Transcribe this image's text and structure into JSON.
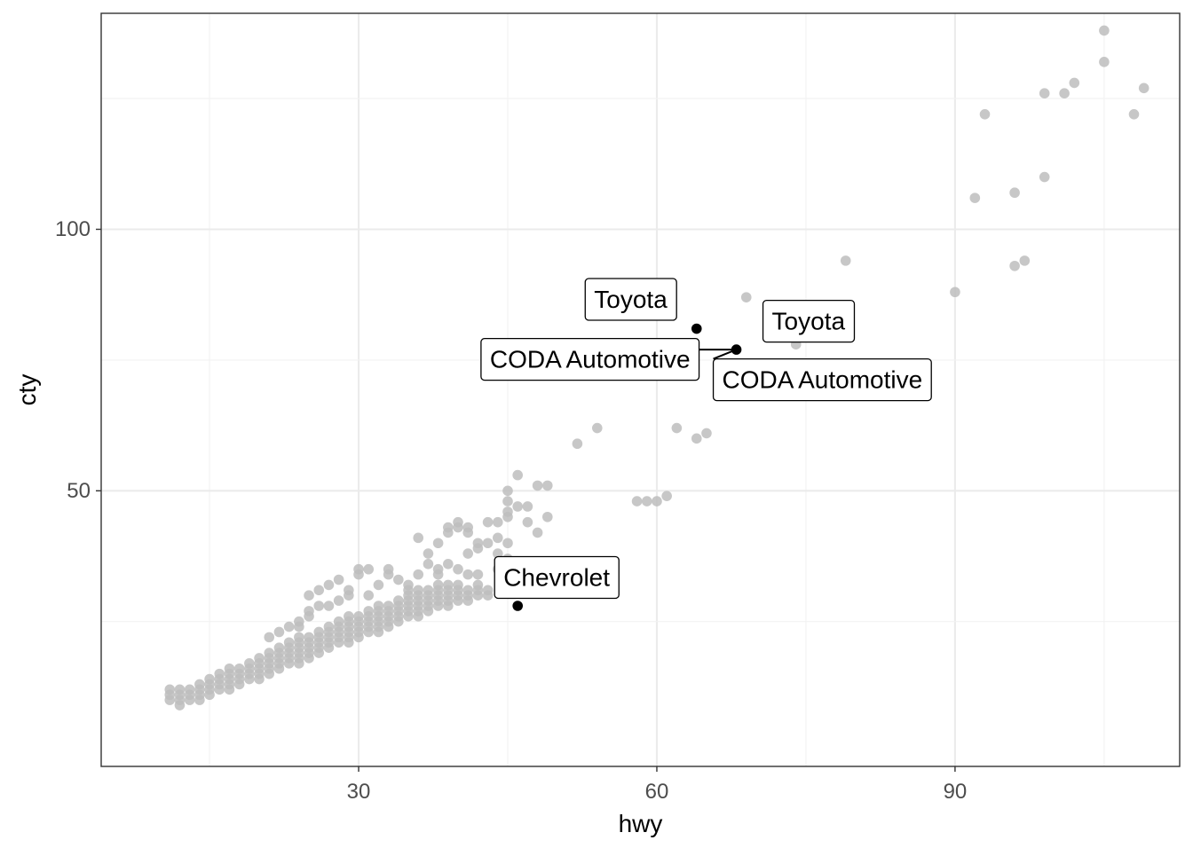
{
  "chart_data": {
    "type": "scatter",
    "xlabel": "hwy",
    "ylabel": "cty",
    "xlim": [
      4.1,
      112.6
    ],
    "ylim": [
      -2.7,
      141.3
    ],
    "x_ticks": [
      30,
      60,
      90
    ],
    "y_ticks": [
      50,
      100
    ],
    "grid": true,
    "colors": {
      "background": "#bdbdbd",
      "highlight": "#000000"
    },
    "background_points": [
      [
        11,
        10
      ],
      [
        11,
        11
      ],
      [
        11,
        12
      ],
      [
        12,
        9
      ],
      [
        12,
        10
      ],
      [
        12,
        11
      ],
      [
        12,
        12
      ],
      [
        13,
        10
      ],
      [
        13,
        11
      ],
      [
        13,
        12
      ],
      [
        14,
        10
      ],
      [
        14,
        11
      ],
      [
        14,
        12
      ],
      [
        14,
        13
      ],
      [
        15,
        11
      ],
      [
        15,
        12
      ],
      [
        15,
        13
      ],
      [
        15,
        14
      ],
      [
        16,
        12
      ],
      [
        16,
        13
      ],
      [
        16,
        14
      ],
      [
        16,
        15
      ],
      [
        17,
        12
      ],
      [
        17,
        13
      ],
      [
        17,
        14
      ],
      [
        17,
        15
      ],
      [
        17,
        16
      ],
      [
        18,
        13
      ],
      [
        18,
        14
      ],
      [
        18,
        15
      ],
      [
        18,
        16
      ],
      [
        19,
        14
      ],
      [
        19,
        15
      ],
      [
        19,
        16
      ],
      [
        19,
        17
      ],
      [
        20,
        14
      ],
      [
        20,
        15
      ],
      [
        20,
        16
      ],
      [
        20,
        17
      ],
      [
        20,
        18
      ],
      [
        21,
        15
      ],
      [
        21,
        16
      ],
      [
        21,
        17
      ],
      [
        21,
        18
      ],
      [
        21,
        19
      ],
      [
        22,
        16
      ],
      [
        22,
        17
      ],
      [
        22,
        18
      ],
      [
        22,
        19
      ],
      [
        22,
        20
      ],
      [
        23,
        17
      ],
      [
        23,
        18
      ],
      [
        23,
        19
      ],
      [
        23,
        20
      ],
      [
        23,
        21
      ],
      [
        24,
        17
      ],
      [
        24,
        18
      ],
      [
        24,
        19
      ],
      [
        24,
        20
      ],
      [
        24,
        21
      ],
      [
        24,
        22
      ],
      [
        25,
        18
      ],
      [
        25,
        19
      ],
      [
        25,
        20
      ],
      [
        25,
        21
      ],
      [
        25,
        22
      ],
      [
        26,
        19
      ],
      [
        26,
        20
      ],
      [
        26,
        21
      ],
      [
        26,
        22
      ],
      [
        26,
        23
      ],
      [
        27,
        20
      ],
      [
        27,
        21
      ],
      [
        27,
        22
      ],
      [
        27,
        23
      ],
      [
        27,
        24
      ],
      [
        28,
        21
      ],
      [
        28,
        22
      ],
      [
        28,
        23
      ],
      [
        28,
        24
      ],
      [
        28,
        25
      ],
      [
        29,
        21
      ],
      [
        29,
        22
      ],
      [
        29,
        23
      ],
      [
        29,
        24
      ],
      [
        29,
        25
      ],
      [
        29,
        26
      ],
      [
        30,
        22
      ],
      [
        30,
        23
      ],
      [
        30,
        24
      ],
      [
        30,
        25
      ],
      [
        30,
        26
      ],
      [
        31,
        23
      ],
      [
        31,
        24
      ],
      [
        31,
        25
      ],
      [
        31,
        26
      ],
      [
        31,
        27
      ],
      [
        32,
        23
      ],
      [
        32,
        24
      ],
      [
        32,
        25
      ],
      [
        32,
        26
      ],
      [
        32,
        27
      ],
      [
        32,
        28
      ],
      [
        33,
        24
      ],
      [
        33,
        25
      ],
      [
        33,
        26
      ],
      [
        33,
        27
      ],
      [
        33,
        28
      ],
      [
        34,
        25
      ],
      [
        34,
        26
      ],
      [
        34,
        27
      ],
      [
        34,
        28
      ],
      [
        34,
        29
      ],
      [
        35,
        26
      ],
      [
        35,
        27
      ],
      [
        35,
        28
      ],
      [
        35,
        29
      ],
      [
        35,
        30
      ],
      [
        36,
        26
      ],
      [
        36,
        27
      ],
      [
        36,
        28
      ],
      [
        36,
        29
      ],
      [
        36,
        30
      ],
      [
        36,
        31
      ],
      [
        37,
        27
      ],
      [
        37,
        28
      ],
      [
        37,
        29
      ],
      [
        37,
        30
      ],
      [
        37,
        31
      ],
      [
        38,
        28
      ],
      [
        38,
        29
      ],
      [
        38,
        30
      ],
      [
        38,
        31
      ],
      [
        38,
        32
      ],
      [
        39,
        28
      ],
      [
        39,
        29
      ],
      [
        39,
        30
      ],
      [
        39,
        31
      ],
      [
        39,
        32
      ],
      [
        40,
        29
      ],
      [
        40,
        30
      ],
      [
        40,
        31
      ],
      [
        40,
        32
      ],
      [
        41,
        29
      ],
      [
        41,
        30
      ],
      [
        41,
        31
      ],
      [
        42,
        30
      ],
      [
        42,
        31
      ],
      [
        42,
        32
      ],
      [
        43,
        30
      ],
      [
        43,
        31
      ],
      [
        21,
        22
      ],
      [
        22,
        23
      ],
      [
        23,
        24
      ],
      [
        24,
        24
      ],
      [
        24,
        25
      ],
      [
        25,
        26
      ],
      [
        25,
        27
      ],
      [
        25,
        30
      ],
      [
        26,
        28
      ],
      [
        26,
        31
      ],
      [
        27,
        28
      ],
      [
        27,
        32
      ],
      [
        28,
        29
      ],
      [
        28,
        33
      ],
      [
        29,
        30
      ],
      [
        29,
        31
      ],
      [
        30,
        34
      ],
      [
        30,
        35
      ],
      [
        31,
        30
      ],
      [
        31,
        35
      ],
      [
        32,
        32
      ],
      [
        33,
        34
      ],
      [
        33,
        35
      ],
      [
        34,
        33
      ],
      [
        35,
        31
      ],
      [
        35,
        32
      ],
      [
        36,
        34
      ],
      [
        36,
        41
      ],
      [
        37,
        36
      ],
      [
        37,
        38
      ],
      [
        38,
        34
      ],
      [
        38,
        35
      ],
      [
        38,
        40
      ],
      [
        39,
        36
      ],
      [
        39,
        42
      ],
      [
        39,
        43
      ],
      [
        40,
        35
      ],
      [
        40,
        43
      ],
      [
        40,
        44
      ],
      [
        41,
        34
      ],
      [
        41,
        38
      ],
      [
        41,
        42
      ],
      [
        41,
        43
      ],
      [
        42,
        34
      ],
      [
        42,
        39
      ],
      [
        42,
        40
      ],
      [
        43,
        40
      ],
      [
        43,
        44
      ],
      [
        44,
        35
      ],
      [
        44,
        38
      ],
      [
        44,
        41
      ],
      [
        44,
        44
      ],
      [
        45,
        37
      ],
      [
        45,
        40
      ],
      [
        45,
        45
      ],
      [
        45,
        46
      ],
      [
        45,
        48
      ],
      [
        45,
        50
      ],
      [
        46,
        53
      ],
      [
        46,
        47
      ],
      [
        47,
        44
      ],
      [
        47,
        47
      ],
      [
        48,
        42
      ],
      [
        48,
        51
      ],
      [
        49,
        45
      ],
      [
        49,
        51
      ],
      [
        52,
        59
      ],
      [
        54,
        62
      ],
      [
        58,
        48
      ],
      [
        59,
        48
      ],
      [
        60,
        48
      ],
      [
        61,
        49
      ],
      [
        62,
        62
      ],
      [
        64,
        60
      ],
      [
        65,
        61
      ],
      [
        69,
        87
      ],
      [
        74,
        78
      ],
      [
        79,
        94
      ],
      [
        90,
        88
      ],
      [
        92,
        106
      ],
      [
        93,
        122
      ],
      [
        96,
        93
      ],
      [
        96,
        107
      ],
      [
        97,
        94
      ],
      [
        99,
        110
      ],
      [
        99,
        126
      ],
      [
        101,
        126
      ],
      [
        102,
        128
      ],
      [
        105,
        132
      ],
      [
        105,
        138
      ],
      [
        108,
        122
      ],
      [
        109,
        127
      ]
    ],
    "highlighted_points": [
      {
        "x": 64,
        "y": 81,
        "label": "Toyota"
      },
      {
        "x": 68,
        "y": 77,
        "label": "Toyota"
      },
      {
        "x": 68,
        "y": 77,
        "label": "CODA Automotive"
      },
      {
        "x": 68,
        "y": 77,
        "label": "CODA Automotive"
      },
      {
        "x": 46,
        "y": 28,
        "label": "Chevrolet"
      }
    ]
  }
}
